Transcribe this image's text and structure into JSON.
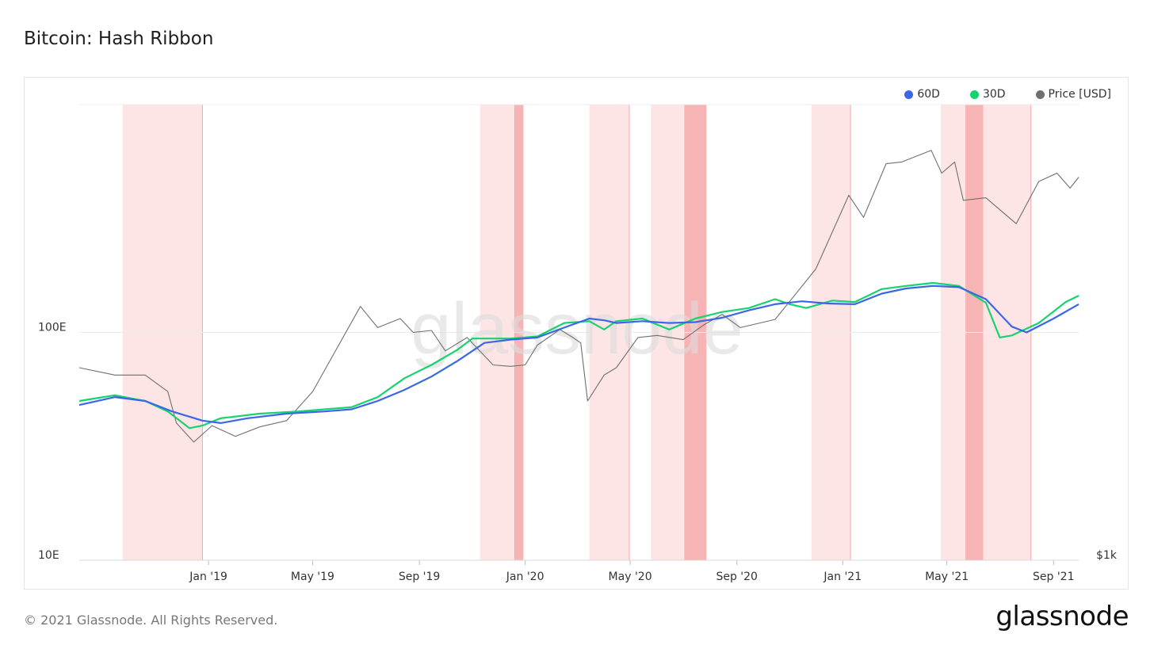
{
  "title": "Bitcoin: Hash Ribbon",
  "footer": "© 2021 Glassnode. All Rights Reserved.",
  "brand": "glassnode",
  "watermark": "glassnode",
  "colors": {
    "s60": "#3b67e6",
    "s30": "#17d36e",
    "price": "#6f6f6f",
    "band_light": "#fde5e5",
    "band_dark": "#f7b4b4"
  },
  "chart_data": {
    "type": "line",
    "title": "Bitcoin: Hash Ribbon",
    "x_ticks": [
      "Jan '19",
      "May '19",
      "Sep '19",
      "Jan '20",
      "May '20",
      "Sep '20",
      "Jan '21",
      "May '21",
      "Sep '21"
    ],
    "y_ticks": [
      "10E",
      "100E"
    ],
    "y2_ticks": [
      "$1k"
    ],
    "legend": [
      {
        "name": "60D",
        "color": "#3b67e6"
      },
      {
        "name": "30D",
        "color": "#17d36e"
      },
      {
        "name": "Price [USD]",
        "color": "#6f6f6f"
      }
    ],
    "x_range": [
      "2018-08-05",
      "2021-09-30"
    ],
    "y_range": [
      10,
      1000
    ],
    "y_scale": "log",
    "y2_range": [
      1000,
      100000
    ],
    "y2_scale": "log",
    "series": [
      {
        "name": "60D",
        "axis": "left",
        "points": [
          [
            "2018-08-05",
            48
          ],
          [
            "2018-09-15",
            52
          ],
          [
            "2018-10-20",
            50
          ],
          [
            "2018-11-20",
            45
          ],
          [
            "2018-12-25",
            41
          ],
          [
            "2019-01-15",
            40
          ],
          [
            "2019-02-15",
            42
          ],
          [
            "2019-04-01",
            44
          ],
          [
            "2019-05-15",
            45
          ],
          [
            "2019-06-15",
            46
          ],
          [
            "2019-07-15",
            50
          ],
          [
            "2019-08-15",
            56
          ],
          [
            "2019-09-15",
            64
          ],
          [
            "2019-10-15",
            75
          ],
          [
            "2019-11-15",
            90
          ],
          [
            "2019-12-15",
            93
          ],
          [
            "2020-01-15",
            95
          ],
          [
            "2020-02-15",
            105
          ],
          [
            "2020-03-15",
            115
          ],
          [
            "2020-04-01",
            113
          ],
          [
            "2020-04-15",
            110
          ],
          [
            "2020-05-15",
            112
          ],
          [
            "2020-06-15",
            110
          ],
          [
            "2020-07-15",
            111
          ],
          [
            "2020-08-15",
            116
          ],
          [
            "2020-09-15",
            125
          ],
          [
            "2020-10-15",
            133
          ],
          [
            "2020-11-15",
            137
          ],
          [
            "2020-12-15",
            134
          ],
          [
            "2021-01-15",
            133
          ],
          [
            "2021-02-15",
            148
          ],
          [
            "2021-03-15",
            156
          ],
          [
            "2021-04-15",
            160
          ],
          [
            "2021-05-15",
            158
          ],
          [
            "2021-06-15",
            140
          ],
          [
            "2021-07-15",
            106
          ],
          [
            "2021-08-01",
            100
          ],
          [
            "2021-09-01",
            115
          ],
          [
            "2021-09-30",
            133
          ]
        ]
      },
      {
        "name": "30D",
        "axis": "left",
        "points": [
          [
            "2018-08-05",
            50
          ],
          [
            "2018-09-15",
            53
          ],
          [
            "2018-10-20",
            50
          ],
          [
            "2018-11-15",
            45
          ],
          [
            "2018-12-10",
            38
          ],
          [
            "2018-12-25",
            39
          ],
          [
            "2019-01-15",
            42
          ],
          [
            "2019-03-01",
            44
          ],
          [
            "2019-04-15",
            45
          ],
          [
            "2019-05-15",
            46
          ],
          [
            "2019-06-15",
            47
          ],
          [
            "2019-07-15",
            52
          ],
          [
            "2019-08-15",
            63
          ],
          [
            "2019-09-15",
            72
          ],
          [
            "2019-10-15",
            84
          ],
          [
            "2019-11-01",
            94
          ],
          [
            "2019-12-15",
            94
          ],
          [
            "2020-01-15",
            96
          ],
          [
            "2020-02-15",
            110
          ],
          [
            "2020-03-15",
            112
          ],
          [
            "2020-04-01",
            103
          ],
          [
            "2020-04-15",
            112
          ],
          [
            "2020-05-15",
            115
          ],
          [
            "2020-06-15",
            103
          ],
          [
            "2020-07-15",
            115
          ],
          [
            "2020-08-15",
            123
          ],
          [
            "2020-09-15",
            128
          ],
          [
            "2020-10-15",
            140
          ],
          [
            "2020-11-01",
            133
          ],
          [
            "2020-11-20",
            128
          ],
          [
            "2020-12-20",
            138
          ],
          [
            "2021-01-15",
            136
          ],
          [
            "2021-02-15",
            155
          ],
          [
            "2021-03-15",
            160
          ],
          [
            "2021-04-15",
            165
          ],
          [
            "2021-05-15",
            160
          ],
          [
            "2021-06-15",
            135
          ],
          [
            "2021-07-01",
            95
          ],
          [
            "2021-07-15",
            97
          ],
          [
            "2021-08-15",
            110
          ],
          [
            "2021-09-15",
            136
          ],
          [
            "2021-09-30",
            145
          ]
        ]
      },
      {
        "name": "Price [USD]",
        "axis": "right",
        "points": [
          [
            "2018-08-05",
            7000
          ],
          [
            "2018-09-15",
            6500
          ],
          [
            "2018-10-20",
            6500
          ],
          [
            "2018-11-15",
            5500
          ],
          [
            "2018-11-25",
            4000
          ],
          [
            "2018-12-15",
            3300
          ],
          [
            "2019-01-05",
            3900
          ],
          [
            "2019-02-01",
            3500
          ],
          [
            "2019-03-01",
            3850
          ],
          [
            "2019-04-01",
            4100
          ],
          [
            "2019-05-01",
            5500
          ],
          [
            "2019-05-25",
            8000
          ],
          [
            "2019-06-25",
            13000
          ],
          [
            "2019-07-15",
            10500
          ],
          [
            "2019-08-10",
            11500
          ],
          [
            "2019-08-25",
            10000
          ],
          [
            "2019-09-15",
            10200
          ],
          [
            "2019-10-01",
            8300
          ],
          [
            "2019-10-26",
            9500
          ],
          [
            "2019-11-25",
            7200
          ],
          [
            "2019-12-15",
            7100
          ],
          [
            "2020-01-01",
            7200
          ],
          [
            "2020-01-15",
            8800
          ],
          [
            "2020-02-10",
            10300
          ],
          [
            "2020-02-25",
            9500
          ],
          [
            "2020-03-05",
            9000
          ],
          [
            "2020-03-13",
            5000
          ],
          [
            "2020-04-01",
            6500
          ],
          [
            "2020-04-15",
            7000
          ],
          [
            "2020-05-10",
            9500
          ],
          [
            "2020-06-01",
            9700
          ],
          [
            "2020-07-01",
            9300
          ],
          [
            "2020-07-25",
            10800
          ],
          [
            "2020-08-15",
            12000
          ],
          [
            "2020-09-05",
            10500
          ],
          [
            "2020-10-15",
            11400
          ],
          [
            "2020-11-01",
            13700
          ],
          [
            "2020-12-01",
            19000
          ],
          [
            "2021-01-08",
            40000
          ],
          [
            "2021-01-25",
            32000
          ],
          [
            "2021-02-20",
            55000
          ],
          [
            "2021-03-10",
            56000
          ],
          [
            "2021-04-13",
            63000
          ],
          [
            "2021-04-25",
            50000
          ],
          [
            "2021-05-10",
            56000
          ],
          [
            "2021-05-20",
            38000
          ],
          [
            "2021-06-15",
            39000
          ],
          [
            "2021-07-20",
            30000
          ],
          [
            "2021-08-15",
            46000
          ],
          [
            "2021-09-05",
            50000
          ],
          [
            "2021-09-20",
            43000
          ],
          [
            "2021-09-30",
            48000
          ]
        ]
      }
    ],
    "bands": [
      {
        "start": "2018-09-24",
        "end": "2018-12-25",
        "shade": "light"
      },
      {
        "start": "2019-11-10",
        "end": "2019-12-20",
        "shade": "light"
      },
      {
        "start": "2019-12-20",
        "end": "2019-12-30",
        "shade": "dark"
      },
      {
        "start": "2020-03-15",
        "end": "2020-04-30",
        "shade": "light"
      },
      {
        "start": "2020-05-25",
        "end": "2020-07-03",
        "shade": "light"
      },
      {
        "start": "2020-07-03",
        "end": "2020-07-28",
        "shade": "dark"
      },
      {
        "start": "2020-11-26",
        "end": "2021-01-10",
        "shade": "light"
      },
      {
        "start": "2021-04-24",
        "end": "2021-05-23",
        "shade": "light"
      },
      {
        "start": "2021-05-23",
        "end": "2021-06-12",
        "shade": "dark"
      },
      {
        "start": "2021-06-12",
        "end": "2021-08-06",
        "shade": "light"
      }
    ],
    "grid": true,
    "legend_position": "top-right"
  }
}
